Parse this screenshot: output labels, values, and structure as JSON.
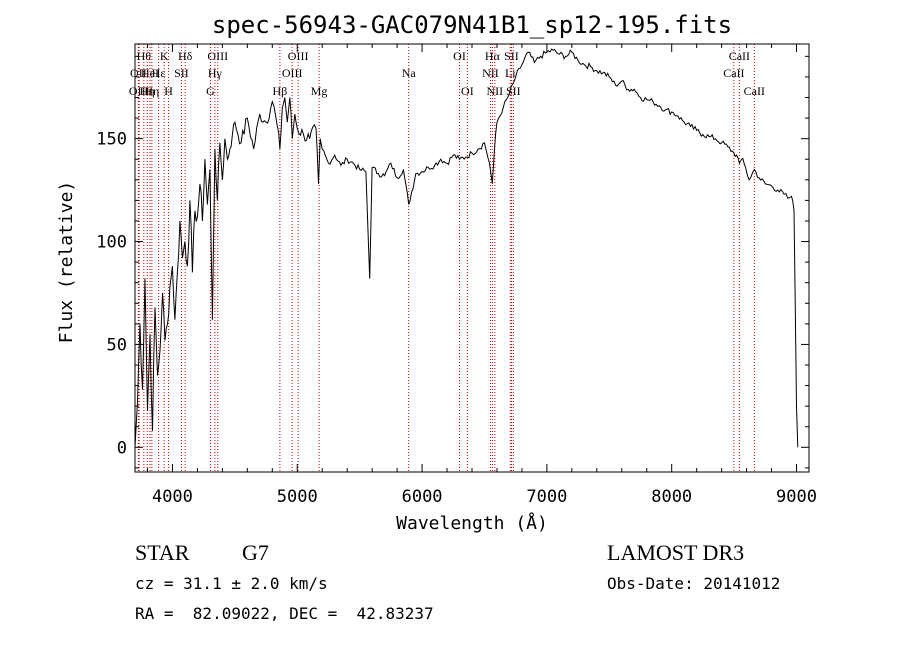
{
  "chart_data": {
    "type": "line",
    "title": "spec-56943-GAC079N41B1_sp12-195.fits",
    "xlabel": "Wavelength (Å)",
    "ylabel": "Flux (relative)",
    "xlim": [
      3700,
      9100
    ],
    "ylim": [
      -12,
      196
    ],
    "xticks": [
      4000,
      5000,
      6000,
      7000,
      8000,
      9000
    ],
    "yticks": [
      0,
      50,
      100,
      150
    ],
    "line_color": "#000000",
    "marker_color": "#cc0000",
    "series": [
      {
        "x": [
          3700,
          3720,
          3740,
          3760,
          3780,
          3800,
          3820,
          3840,
          3860,
          3880,
          3900,
          3920,
          3940,
          3960,
          3980,
          4000,
          4020,
          4040,
          4060,
          4080,
          4100,
          4120,
          4140,
          4160,
          4180,
          4200,
          4220,
          4240,
          4260,
          4280,
          4300,
          4320,
          4340,
          4360,
          4380,
          4400,
          4420,
          4440,
          4460,
          4480,
          4500,
          4550,
          4600,
          4650,
          4700,
          4750,
          4800,
          4830,
          4861,
          4880,
          4900,
          4920,
          4940,
          4960,
          4980,
          5000,
          5050,
          5100,
          5150,
          5170,
          5184,
          5200,
          5250,
          5300,
          5350,
          5400,
          5450,
          5500,
          5550,
          5580,
          5600,
          5650,
          5700,
          5750,
          5800,
          5850,
          5893,
          5950,
          6000,
          6050,
          6100,
          6150,
          6200,
          6250,
          6300,
          6350,
          6400,
          6450,
          6500,
          6540,
          6563,
          6580,
          6600,
          6650,
          6700,
          6750,
          6800,
          6850,
          6900,
          6950,
          7000,
          7050,
          7100,
          7150,
          7200,
          7250,
          7300,
          7350,
          7400,
          7450,
          7500,
          7550,
          7600,
          7650,
          7700,
          7750,
          7800,
          7850,
          7900,
          7950,
          8000,
          8050,
          8100,
          8150,
          8200,
          8250,
          8300,
          8350,
          8400,
          8450,
          8498,
          8520,
          8542,
          8560,
          8580,
          8620,
          8662,
          8700,
          8750,
          8800,
          8850,
          8900,
          8930,
          8960,
          8980,
          9000,
          9010
        ],
        "y": [
          0,
          22,
          60,
          28,
          82,
          18,
          55,
          8,
          68,
          35,
          47,
          75,
          52,
          60,
          78,
          88,
          62,
          85,
          110,
          92,
          100,
          88,
          120,
          85,
          115,
          112,
          128,
          110,
          140,
          118,
          135,
          62,
          145,
          120,
          148,
          130,
          150,
          140,
          145,
          152,
          158,
          148,
          160,
          145,
          162,
          158,
          168,
          160,
          145,
          165,
          170,
          158,
          170,
          150,
          162,
          155,
          152,
          150,
          155,
          128,
          150,
          145,
          138,
          142,
          137,
          140,
          138,
          135,
          134,
          82,
          136,
          133,
          132,
          138,
          131,
          135,
          118,
          133,
          134,
          136,
          137,
          140,
          138,
          142,
          140,
          141,
          143,
          145,
          148,
          138,
          128,
          145,
          158,
          165,
          172,
          180,
          186,
          192,
          187,
          190,
          192,
          193,
          191,
          190,
          192,
          188,
          186,
          185,
          183,
          182,
          180,
          176,
          178,
          174,
          174,
          170,
          169,
          168,
          166,
          164,
          163,
          161,
          158,
          156,
          154,
          152,
          151,
          150,
          148,
          146,
          143,
          142,
          138,
          140,
          138,
          130,
          135,
          131,
          128,
          127,
          125,
          123,
          121,
          122,
          115,
          20,
          0
        ]
      }
    ],
    "line_markers": [
      {
        "x": 3727,
        "label": "OII",
        "row": 1
      },
      {
        "x": 3734,
        "label": "OIII",
        "row": 2
      },
      {
        "x": 3771,
        "label": "Hθ",
        "row": 0
      },
      {
        "x": 3798,
        "label": "Hη",
        "row": 2
      },
      {
        "x": 3820,
        "label": "HeI",
        "row": 1
      },
      {
        "x": 3835,
        "label": "Hη",
        "row": 2
      },
      {
        "x": 3889,
        "label": "Hε",
        "row": 1
      },
      {
        "x": 3934,
        "label": "K",
        "row": 0
      },
      {
        "x": 3969,
        "label": "H",
        "row": 2
      },
      {
        "x": 4072,
        "label": "SII",
        "row": 1
      },
      {
        "x": 4102,
        "label": "Hδ",
        "row": 0
      },
      {
        "x": 4305,
        "label": "G",
        "row": 2
      },
      {
        "x": 4340,
        "label": "Hγ",
        "row": 1
      },
      {
        "x": 4363,
        "label": "OIII",
        "row": 0
      },
      {
        "x": 4861,
        "label": "Hβ",
        "row": 2
      },
      {
        "x": 4959,
        "label": "OIII",
        "row": 1
      },
      {
        "x": 5007,
        "label": "OIII",
        "row": 0
      },
      {
        "x": 5175,
        "label": "Mg",
        "row": 2
      },
      {
        "x": 5893,
        "label": "Na",
        "row": 1
      },
      {
        "x": 6300,
        "label": "OI",
        "row": 0
      },
      {
        "x": 6363,
        "label": "OI",
        "row": 2
      },
      {
        "x": 6548,
        "label": "NII",
        "row": 1
      },
      {
        "x": 6563,
        "label": "Hα",
        "row": 0
      },
      {
        "x": 6583,
        "label": "NII",
        "row": 2
      },
      {
        "x": 6707,
        "label": "Li",
        "row": 1
      },
      {
        "x": 6716,
        "label": "SII",
        "row": 0
      },
      {
        "x": 6731,
        "label": "SII",
        "row": 2
      },
      {
        "x": 8498,
        "label": "CaII",
        "row": 1
      },
      {
        "x": 8542,
        "label": "CaII",
        "row": 0
      },
      {
        "x": 8662,
        "label": "CaII",
        "row": 2
      }
    ]
  },
  "footer": {
    "object_class": "STAR",
    "subclass": "G7",
    "survey": "LAMOST DR3",
    "redshift_line": "cz = 31.1 ± 2.0 km/s",
    "obs_date": "Obs-Date: 20141012",
    "coords": "RA =  82.09022, DEC =  42.83237"
  }
}
